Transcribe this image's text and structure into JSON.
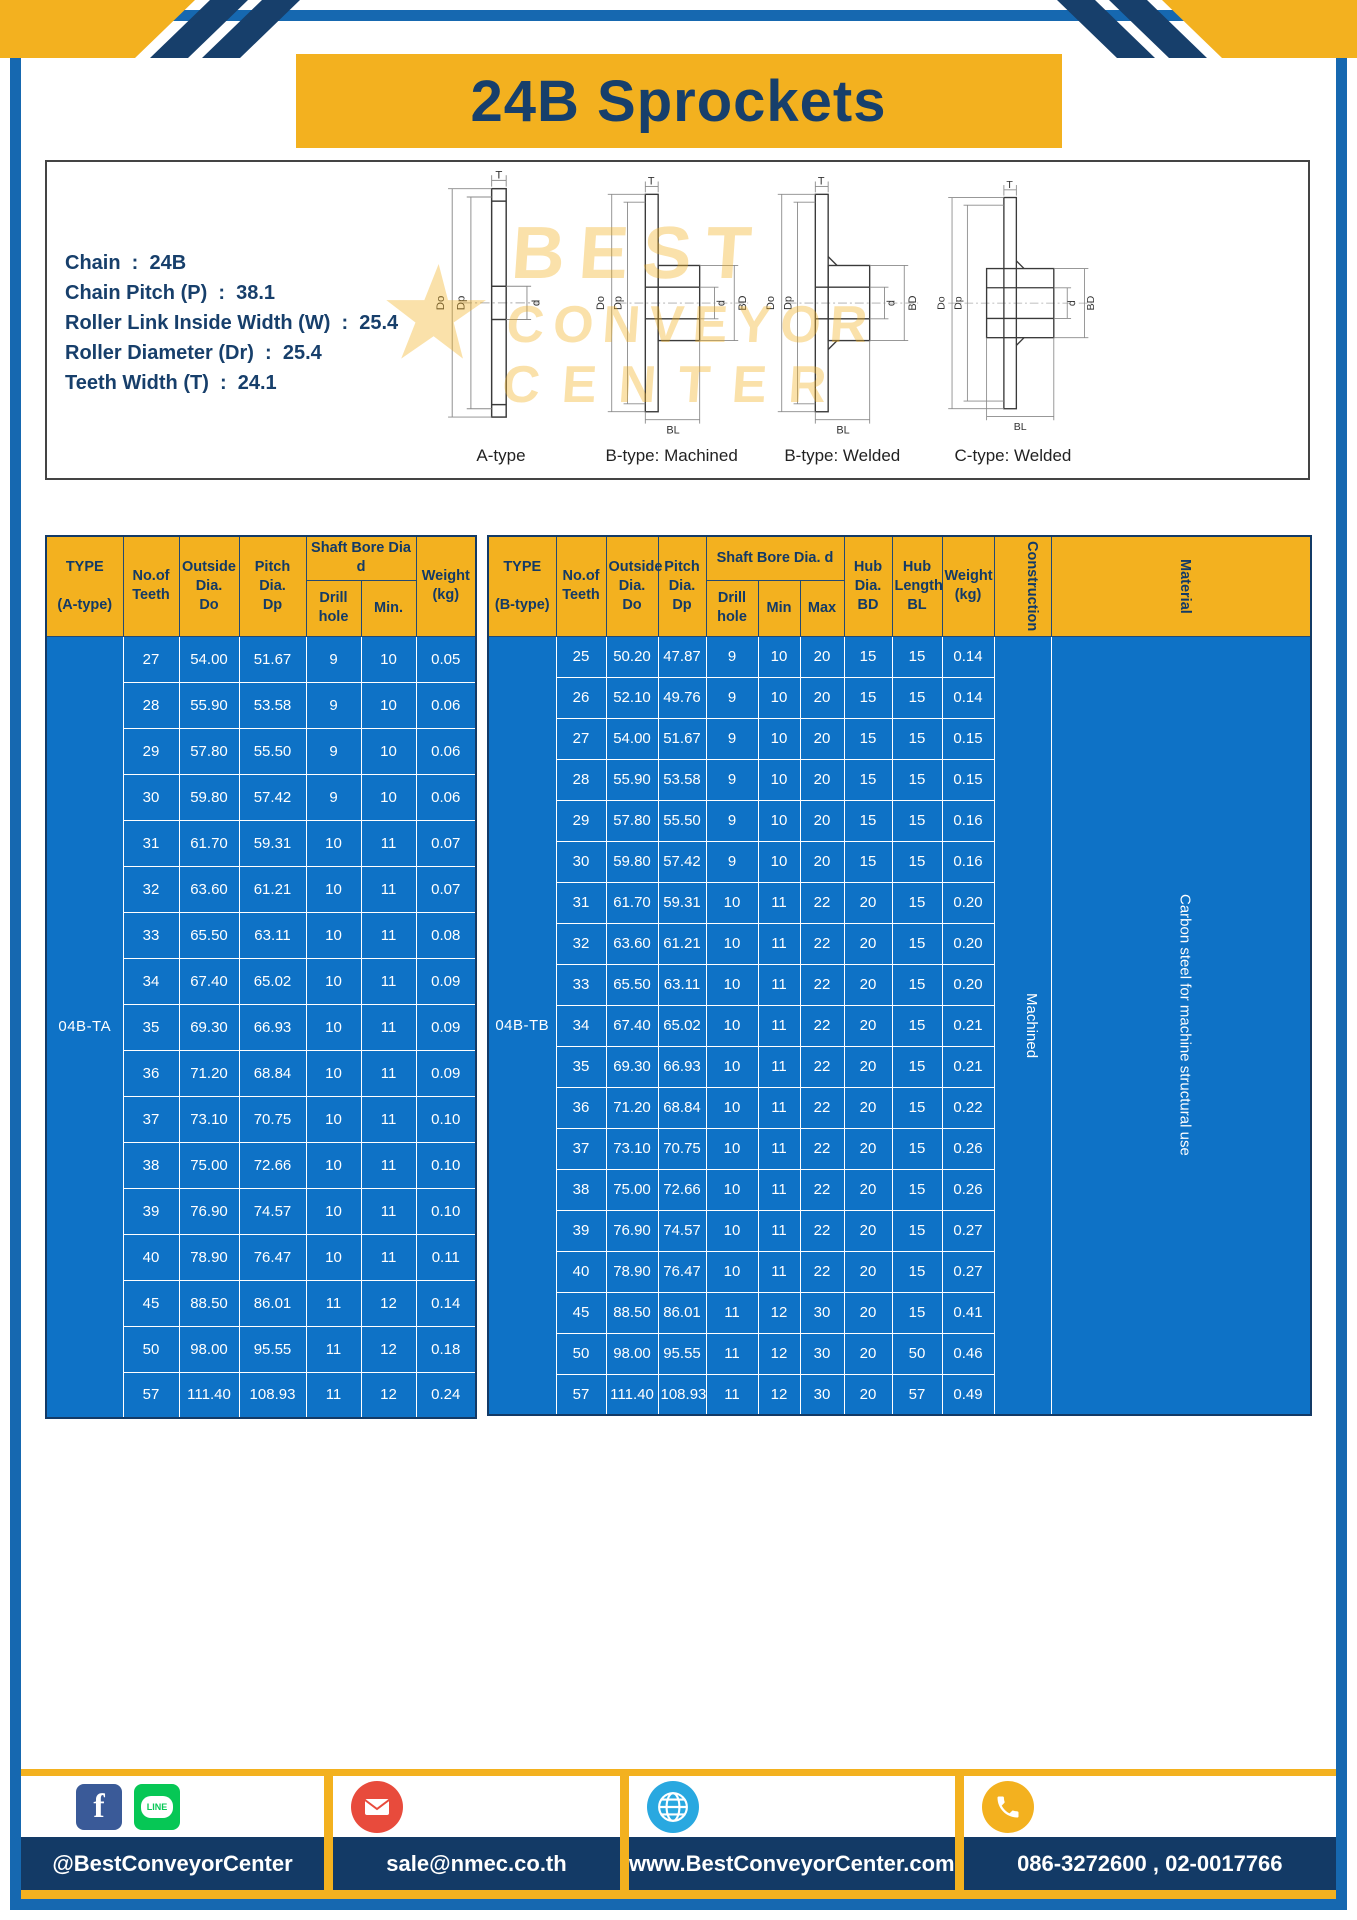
{
  "title": "24B Sprockets",
  "specs": {
    "lines": [
      "Chain  :  24B",
      "Chain Pitch (P)  :  38.1",
      "Roller Link Inside Width (W)  :  25.4",
      "Roller Diameter (Dr)  :  25.4",
      "Teeth Width (T)  :  24.1"
    ]
  },
  "watermark": {
    "star": "★",
    "lines": [
      "BEST",
      "CONVEYOR",
      "CENTER"
    ]
  },
  "diagrams": [
    {
      "caption": "A-type",
      "t": "T",
      "do": "Do",
      "dp": "Dp",
      "d": "d"
    },
    {
      "caption": "B-type: Machined",
      "t": "T",
      "do": "Do",
      "dp": "Dp",
      "d": "d",
      "bd": "BD",
      "bl": "BL"
    },
    {
      "caption": "B-type: Welded",
      "t": "T",
      "do": "Do",
      "dp": "Dp",
      "d": "d",
      "bd": "BD",
      "bl": "BL"
    },
    {
      "caption": "C-type: Welded",
      "t": "T",
      "do": "Do",
      "dp": "Dp",
      "d": "d",
      "bd": "BD",
      "bl": "BL"
    }
  ],
  "table_a": {
    "type_label": "04B-TA",
    "headers": {
      "type": "TYPE\n\n(A-type)",
      "teeth": "No.of\nTeeth",
      "outside": "Outside\nDia.\nDo",
      "pitch": "Pitch Dia.\nDp",
      "shaft_group": "Shaft Bore Dia d",
      "drill": "Drill hole",
      "min": "Min.",
      "weight": "Weight\n(kg)"
    },
    "rows": [
      [
        "27",
        "54.00",
        "51.67",
        "9",
        "10",
        "0.05"
      ],
      [
        "28",
        "55.90",
        "53.58",
        "9",
        "10",
        "0.06"
      ],
      [
        "29",
        "57.80",
        "55.50",
        "9",
        "10",
        "0.06"
      ],
      [
        "30",
        "59.80",
        "57.42",
        "9",
        "10",
        "0.06"
      ],
      [
        "31",
        "61.70",
        "59.31",
        "10",
        "11",
        "0.07"
      ],
      [
        "32",
        "63.60",
        "61.21",
        "10",
        "11",
        "0.07"
      ],
      [
        "33",
        "65.50",
        "63.11",
        "10",
        "11",
        "0.08"
      ],
      [
        "34",
        "67.40",
        "65.02",
        "10",
        "11",
        "0.09"
      ],
      [
        "35",
        "69.30",
        "66.93",
        "10",
        "11",
        "0.09"
      ],
      [
        "36",
        "71.20",
        "68.84",
        "10",
        "11",
        "0.09"
      ],
      [
        "37",
        "73.10",
        "70.75",
        "10",
        "11",
        "0.10"
      ],
      [
        "38",
        "75.00",
        "72.66",
        "10",
        "11",
        "0.10"
      ],
      [
        "39",
        "76.90",
        "74.57",
        "10",
        "11",
        "0.10"
      ],
      [
        "40",
        "78.90",
        "76.47",
        "10",
        "11",
        "0.11"
      ],
      [
        "45",
        "88.50",
        "86.01",
        "11",
        "12",
        "0.14"
      ],
      [
        "50",
        "98.00",
        "95.55",
        "11",
        "12",
        "0.18"
      ],
      [
        "57",
        "111.40",
        "108.93",
        "11",
        "12",
        "0.24"
      ]
    ]
  },
  "table_b": {
    "type_label": "04B-TB",
    "construction_value": "Machined",
    "material_value": "Carbon steel for machine structural use",
    "headers": {
      "type": "TYPE\n\n(B-type)",
      "teeth": "No.of\nTeeth",
      "outside": "Outside\nDia.\nDo",
      "pitch": "Pitch\nDia.\nDp",
      "shaft_group": "Shaft Bore Dia.  d",
      "drill": "Drill hole",
      "min": "Min",
      "max": "Max",
      "hub_dia": "Hub\nDia.\nBD",
      "hub_len": "Hub\nLength\nBL",
      "weight": "Weight\n(kg)",
      "construction": "Construction",
      "material": "Material"
    },
    "rows": [
      [
        "25",
        "50.20",
        "47.87",
        "9",
        "10",
        "20",
        "15",
        "15",
        "0.14"
      ],
      [
        "26",
        "52.10",
        "49.76",
        "9",
        "10",
        "20",
        "15",
        "15",
        "0.14"
      ],
      [
        "27",
        "54.00",
        "51.67",
        "9",
        "10",
        "20",
        "15",
        "15",
        "0.15"
      ],
      [
        "28",
        "55.90",
        "53.58",
        "9",
        "10",
        "20",
        "15",
        "15",
        "0.15"
      ],
      [
        "29",
        "57.80",
        "55.50",
        "9",
        "10",
        "20",
        "15",
        "15",
        "0.16"
      ],
      [
        "30",
        "59.80",
        "57.42",
        "9",
        "10",
        "20",
        "15",
        "15",
        "0.16"
      ],
      [
        "31",
        "61.70",
        "59.31",
        "10",
        "11",
        "22",
        "20",
        "15",
        "0.20"
      ],
      [
        "32",
        "63.60",
        "61.21",
        "10",
        "11",
        "22",
        "20",
        "15",
        "0.20"
      ],
      [
        "33",
        "65.50",
        "63.11",
        "10",
        "11",
        "22",
        "20",
        "15",
        "0.20"
      ],
      [
        "34",
        "67.40",
        "65.02",
        "10",
        "11",
        "22",
        "20",
        "15",
        "0.21"
      ],
      [
        "35",
        "69.30",
        "66.93",
        "10",
        "11",
        "22",
        "20",
        "15",
        "0.21"
      ],
      [
        "36",
        "71.20",
        "68.84",
        "10",
        "11",
        "22",
        "20",
        "15",
        "0.22"
      ],
      [
        "37",
        "73.10",
        "70.75",
        "10",
        "11",
        "22",
        "20",
        "15",
        "0.26"
      ],
      [
        "38",
        "75.00",
        "72.66",
        "10",
        "11",
        "22",
        "20",
        "15",
        "0.26"
      ],
      [
        "39",
        "76.90",
        "74.57",
        "10",
        "11",
        "22",
        "20",
        "15",
        "0.27"
      ],
      [
        "40",
        "78.90",
        "76.47",
        "10",
        "11",
        "22",
        "20",
        "15",
        "0.27"
      ],
      [
        "45",
        "88.50",
        "86.01",
        "11",
        "12",
        "30",
        "20",
        "15",
        "0.41"
      ],
      [
        "50",
        "98.00",
        "95.55",
        "11",
        "12",
        "30",
        "20",
        "50",
        "0.46"
      ],
      [
        "57",
        "111.40",
        "108.93",
        "11",
        "12",
        "30",
        "20",
        "57",
        "0.49"
      ]
    ]
  },
  "footer": {
    "facebook": "@BestConveyorCenter",
    "line_label": "LINE",
    "email": "sale@nmec.co.th",
    "website": "www.BestConveyorCenter.com",
    "phone": "086-3272600 , 02-0017766"
  },
  "colors": {
    "yellow": "#f3b11f",
    "navy": "#133a66",
    "frame_blue": "#1668b0",
    "table_body_blue": "#0e72c6"
  }
}
